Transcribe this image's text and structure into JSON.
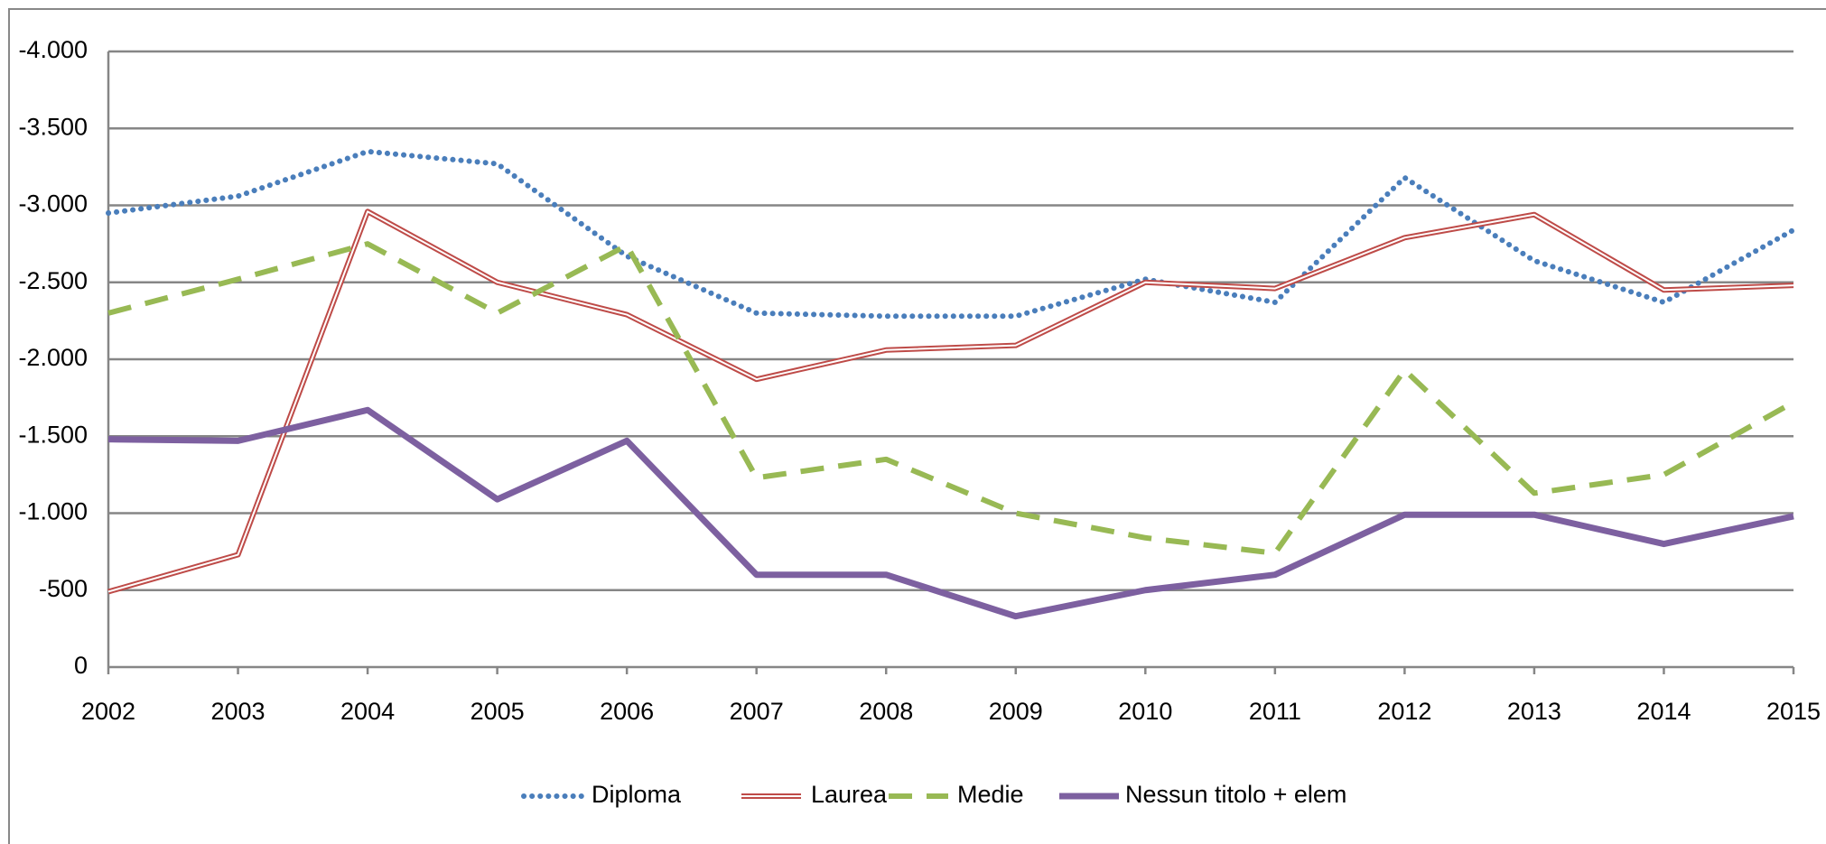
{
  "chart_data": {
    "type": "line",
    "categories": [
      "2002",
      "2003",
      "2004",
      "2005",
      "2006",
      "2007",
      "2008",
      "2009",
      "2010",
      "2011",
      "2012",
      "2013",
      "2014",
      "2015"
    ],
    "series": [
      {
        "name": "Diploma",
        "color": "#4a7ebb",
        "style": "dotted",
        "values": [
          -2950,
          -3060,
          -3350,
          -3270,
          -2670,
          -2300,
          -2280,
          -2280,
          -2520,
          -2370,
          -3180,
          -2640,
          -2370,
          -2840
        ]
      },
      {
        "name": "Laurea",
        "color": "#be4b48",
        "style": "double",
        "values": [
          -490,
          -730,
          -2960,
          -2500,
          -2290,
          -1870,
          -2060,
          -2090,
          -2500,
          -2460,
          -2790,
          -2940,
          -2450,
          -2480
        ]
      },
      {
        "name": "Medie",
        "color": "#98b954",
        "style": "dashed",
        "values": [
          -2300,
          -2520,
          -2750,
          -2300,
          -2740,
          -1230,
          -1350,
          -1000,
          -840,
          -740,
          -1930,
          -1130,
          -1250,
          -1720
        ]
      },
      {
        "name": "Nessun titolo + elem",
        "color": "#7d60a0",
        "style": "solid",
        "values": [
          -1480,
          -1470,
          -1670,
          -1090,
          -1470,
          -600,
          -600,
          -330,
          -500,
          -600,
          -990,
          -990,
          -800,
          -980
        ]
      }
    ],
    "ylim": [
      0,
      -4000
    ],
    "reversed_y": true,
    "yticks": [
      0,
      {
        "value": -500,
        "label": "-500"
      },
      {
        "value": -1000,
        "label": "-1.000"
      },
      {
        "value": -1500,
        "label": "-1.500"
      },
      {
        "value": -2000,
        "label": "-2.000"
      },
      {
        "value": -2500,
        "label": "-2.500"
      },
      {
        "value": -3000,
        "label": "-3.000"
      },
      {
        "value": -3500,
        "label": "-3.500"
      },
      {
        "value": -4000,
        "label": "-4.000"
      }
    ],
    "grid": true,
    "legend": "bottom"
  }
}
